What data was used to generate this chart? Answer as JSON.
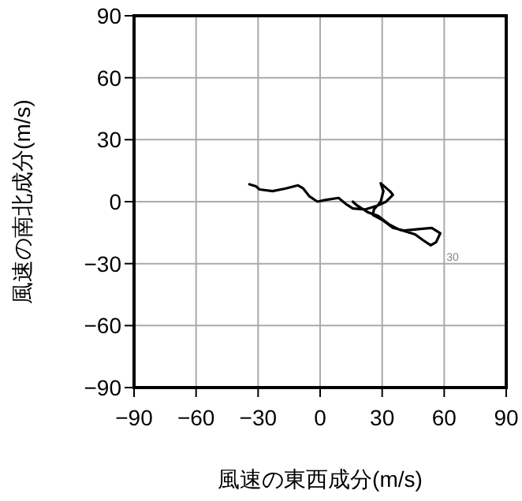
{
  "chart_data": {
    "type": "line",
    "xlabel": "風速の東西成分(m/s)",
    "ylabel": "風速の南北成分(m/s)",
    "xlim": [
      -90,
      90
    ],
    "ylim": [
      -90,
      90
    ],
    "xticks": [
      -90,
      -60,
      -30,
      0,
      30,
      60,
      90
    ],
    "yticks": [
      -90,
      -60,
      -30,
      0,
      30,
      60,
      90
    ],
    "grid": true,
    "x": [
      -34.2,
      -31,
      -29.3,
      -23,
      -16.6,
      -10.7,
      -8.2,
      -5.1,
      -1.3,
      2.5,
      8.9,
      12.7,
      15.8,
      21.7,
      28,
      31.9,
      35.2,
      33.7,
      29.3,
      30.6,
      29.3,
      26,
      25.5,
      30.1,
      35.2,
      40.8,
      48.5,
      54,
      58.1,
      56.1,
      53.5,
      49.7,
      45.9,
      38.2,
      33.2,
      28,
      23,
      17.8,
      15.8
    ],
    "series": [
      {
        "color": "#000000",
        "values": [
          8.4,
          7.4,
          5.9,
          5.1,
          6.4,
          7.9,
          6.4,
          2.5,
          0,
          0.8,
          1.8,
          -1.3,
          -3.3,
          -3.8,
          -1.8,
          0,
          3.3,
          5.1,
          8.9,
          5.1,
          0,
          -3.8,
          -6.4,
          -8.9,
          -12.7,
          -14,
          -13.2,
          -12.7,
          -15.3,
          -19.6,
          -21.1,
          -18.6,
          -15.8,
          -13.5,
          -10.9,
          -6.9,
          -5.1,
          -1.8,
          0
        ]
      }
    ],
    "annotations": [
      "30"
    ]
  }
}
